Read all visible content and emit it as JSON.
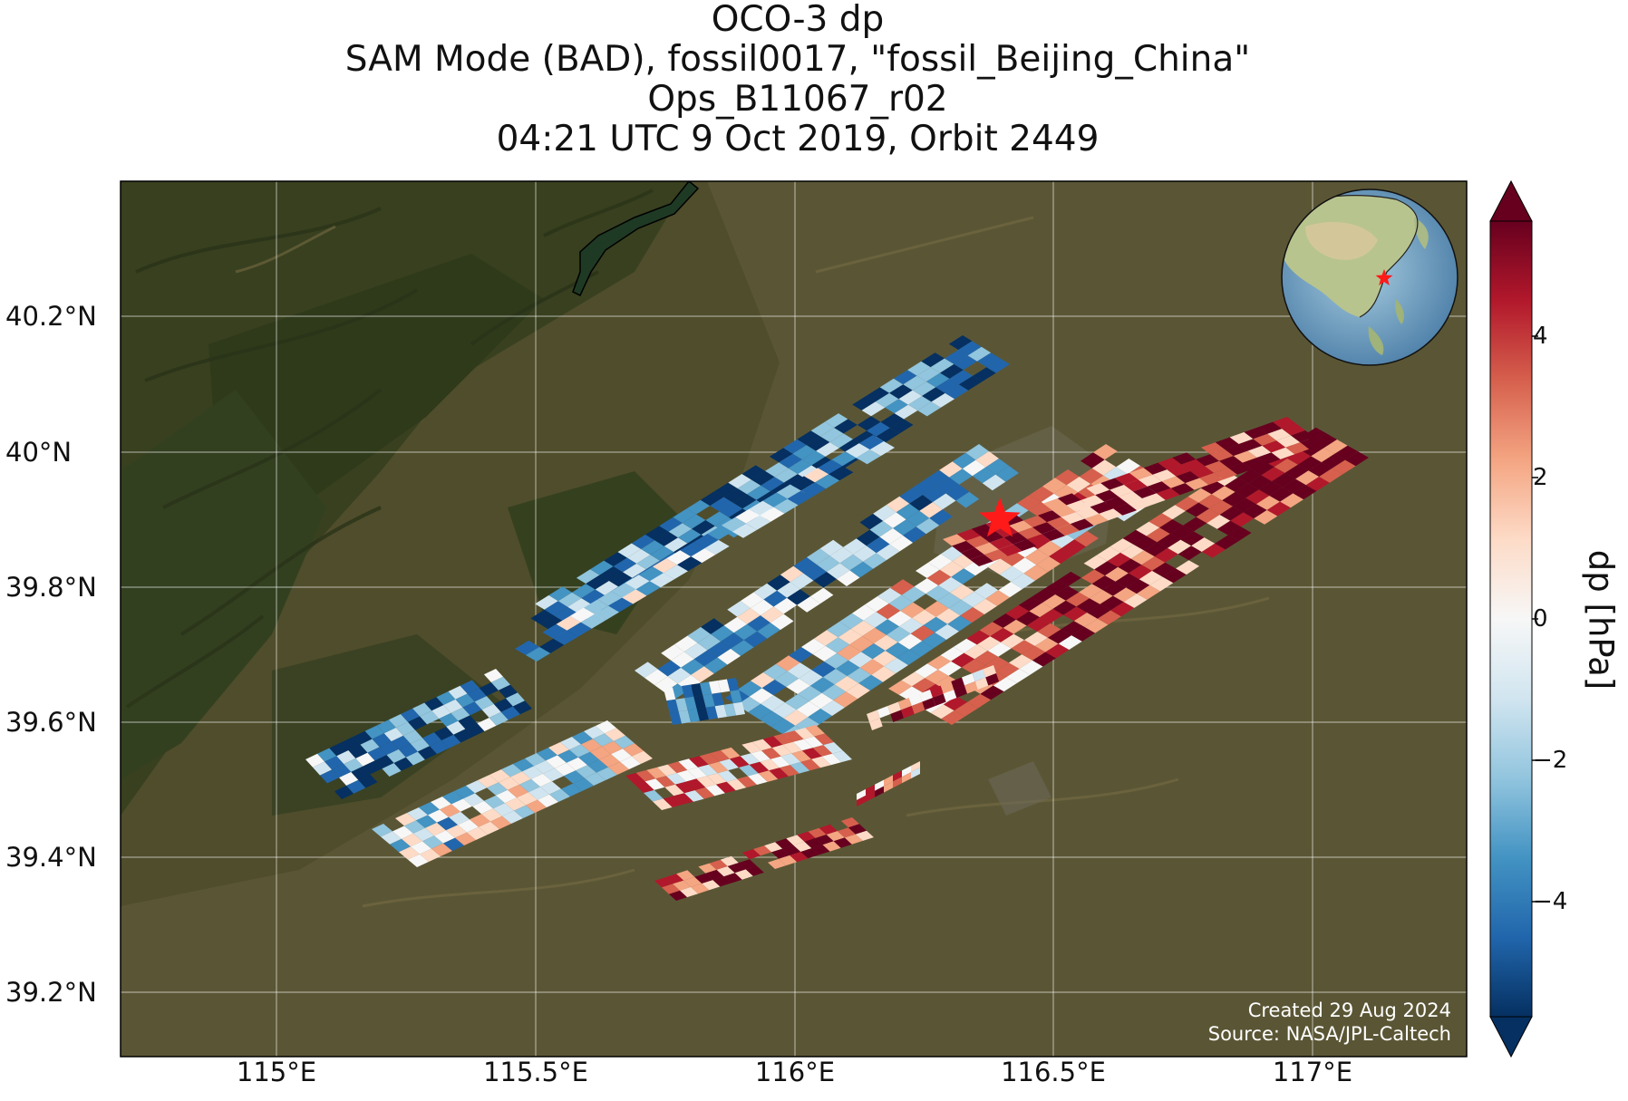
{
  "title": {
    "line1": "OCO-3 dp",
    "line2": "SAM Mode (BAD), fossil0017, \"fossil_Beijing_China\"",
    "line3": "Ops_B11067_r02",
    "line4": "04:21 UTC 9 Oct 2019, Orbit 2449"
  },
  "map": {
    "lat_ticks": [
      "40.2°N",
      "40°N",
      "39.8°N",
      "39.6°N",
      "39.4°N",
      "39.2°N"
    ],
    "lon_ticks": [
      "115°E",
      "115.5°E",
      "116°E",
      "116.5°E",
      "117°E"
    ],
    "lat_range": [
      39.1,
      40.38
    ],
    "lon_range": [
      114.7,
      117.3
    ],
    "target_site": {
      "lon": 116.39,
      "lat": 39.905,
      "marker": "red-star"
    },
    "credits": {
      "created": "Created 29 Aug 2024",
      "source": "Source: NASA/JPL-Caltech"
    },
    "basemap": "satellite imagery",
    "inset": "globe locator with red star over Beijing"
  },
  "colorbar": {
    "label": "dp [hPa]",
    "ticks": [
      "4",
      "2",
      "0",
      "−2",
      "−4"
    ],
    "range": [
      -5.7,
      5.7
    ],
    "colormap": "RdBu_r",
    "extend": "both",
    "colors": [
      "#053061",
      "#2166ac",
      "#4393c3",
      "#92c5de",
      "#d1e5f0",
      "#f7f7f7",
      "#fddbc7",
      "#f4a582",
      "#d6604d",
      "#b2182b",
      "#67001f"
    ]
  }
}
